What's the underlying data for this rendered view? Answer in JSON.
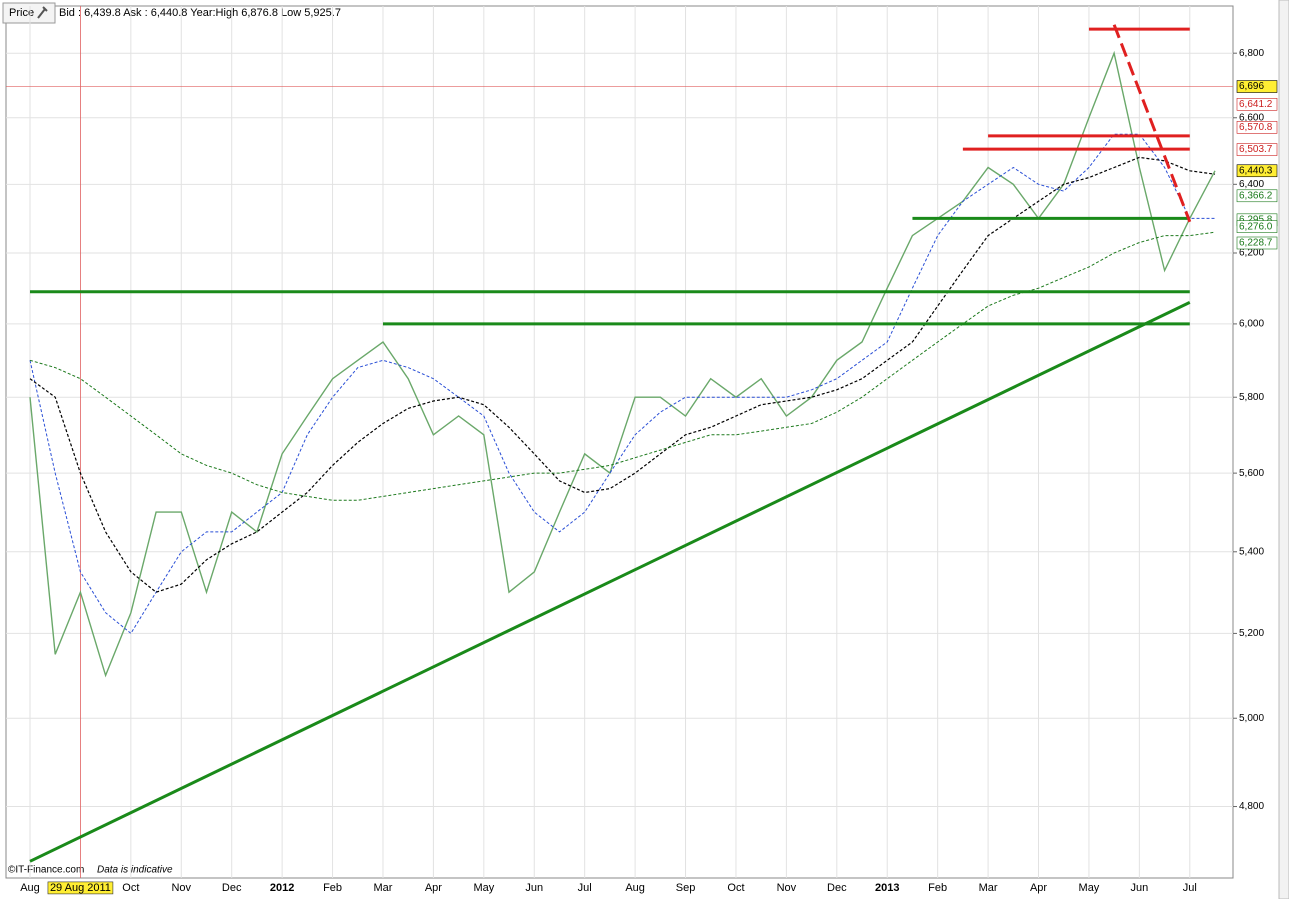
{
  "chart_data": {
    "type": "line",
    "button": "Price",
    "info": "Bid : 6,439.8 Ask : 6,440.8 Year:High 6,876.8 Low 5,925.7",
    "credit": "©IT-Finance.com",
    "note": "Data is indicative",
    "crosshair": {
      "label": "29 Aug 2011",
      "index": 2,
      "value": 6696,
      "color": "#e06060"
    },
    "categories": [
      "Aug",
      null,
      null,
      null,
      "Oct",
      null,
      "Nov",
      null,
      "Dec",
      null,
      "2012",
      null,
      "Feb",
      null,
      "Mar",
      null,
      "Apr",
      null,
      "May",
      null,
      "Jun",
      null,
      "Jul",
      null,
      "Aug",
      null,
      "Sep",
      null,
      "Oct",
      null,
      "Nov",
      null,
      "Dec",
      null,
      "2013",
      null,
      "Feb",
      null,
      "Mar",
      null,
      "Apr",
      null,
      "May",
      null,
      "Jun",
      null,
      "Jul",
      null
    ],
    "series": [
      {
        "name": "Price",
        "color": "#6aa86a",
        "width": 1.4,
        "dash": "",
        "values": [
          5800,
          5150,
          5300,
          5100,
          5250,
          5500,
          5500,
          5300,
          5500,
          5450,
          5650,
          5750,
          5850,
          5900,
          5950,
          5850,
          5700,
          5750,
          5700,
          5300,
          5350,
          5500,
          5650,
          5600,
          5800,
          5800,
          5750,
          5850,
          5800,
          5850,
          5750,
          5800,
          5900,
          5950,
          6100,
          6250,
          6300,
          6350,
          6450,
          6400,
          6300,
          6400,
          6600,
          6800,
          6450,
          6150,
          6300,
          6440
        ]
      },
      {
        "name": "MA blue",
        "color": "#2a4fd6",
        "width": 1,
        "dash": "3 2",
        "values": [
          5900,
          5600,
          5350,
          5250,
          5200,
          5300,
          5400,
          5450,
          5450,
          5500,
          5550,
          5700,
          5800,
          5880,
          5900,
          5880,
          5850,
          5800,
          5750,
          5600,
          5500,
          5450,
          5500,
          5600,
          5700,
          5760,
          5800,
          5800,
          5800,
          5800,
          5800,
          5820,
          5850,
          5900,
          5950,
          6100,
          6250,
          6350,
          6400,
          6450,
          6400,
          6380,
          6450,
          6550,
          6550,
          6450,
          6300,
          6300
        ]
      },
      {
        "name": "MA black",
        "color": "#000000",
        "width": 1.2,
        "dash": "3 2",
        "values": [
          5850,
          5800,
          5600,
          5450,
          5350,
          5300,
          5320,
          5380,
          5420,
          5450,
          5500,
          5550,
          5620,
          5680,
          5730,
          5770,
          5790,
          5800,
          5780,
          5720,
          5650,
          5580,
          5550,
          5560,
          5600,
          5650,
          5700,
          5720,
          5750,
          5780,
          5790,
          5800,
          5820,
          5850,
          5900,
          5950,
          6050,
          6150,
          6250,
          6300,
          6350,
          6400,
          6420,
          6450,
          6480,
          6470,
          6440,
          6430
        ]
      },
      {
        "name": "MA green",
        "color": "#1e7a1e",
        "width": 1,
        "dash": "3 2",
        "values": [
          5900,
          5880,
          5850,
          5800,
          5750,
          5700,
          5650,
          5620,
          5600,
          5570,
          5550,
          5540,
          5530,
          5530,
          5540,
          5550,
          5560,
          5570,
          5580,
          5590,
          5600,
          5600,
          5610,
          5620,
          5640,
          5660,
          5680,
          5700,
          5700,
          5710,
          5720,
          5730,
          5760,
          5800,
          5850,
          5900,
          5950,
          6000,
          6050,
          6080,
          6100,
          6130,
          6160,
          6200,
          6230,
          6250,
          6250,
          6260
        ]
      }
    ],
    "lines": [
      {
        "from": [
          0,
          6090
        ],
        "to": [
          46,
          6090
        ],
        "color": "#1a8a1a",
        "dash": ""
      },
      {
        "from": [
          14,
          6000
        ],
        "to": [
          46,
          6000
        ],
        "color": "#1a8a1a",
        "dash": ""
      },
      {
        "from": [
          35,
          6300
        ],
        "to": [
          46,
          6300
        ],
        "color": "#1a8a1a",
        "dash": ""
      },
      {
        "from": [
          0,
          4680
        ],
        "to": [
          46,
          6060
        ],
        "color": "#1a8a1a",
        "dash": ""
      },
      {
        "from": [
          42,
          6876
        ],
        "to": [
          46,
          6876
        ],
        "color": "#e02020",
        "dash": ""
      },
      {
        "from": [
          38,
          6545
        ],
        "to": [
          46,
          6545
        ],
        "color": "#e02020",
        "dash": ""
      },
      {
        "from": [
          37,
          6505
        ],
        "to": [
          46,
          6505
        ],
        "color": "#e02020",
        "dash": ""
      },
      {
        "from": [
          43,
          6890
        ],
        "to": [
          46,
          6290
        ],
        "color": "#e02020",
        "dash": "14 6"
      }
    ],
    "price_labels": [
      {
        "value": 6696,
        "label": "6,696",
        "color": "#000000",
        "background": "#ffee33"
      },
      {
        "value": 6641.2,
        "label": "6,641.2",
        "color": "#cc2020",
        "background": "#ffffff"
      },
      {
        "value": 6570.8,
        "label": "6,570.8",
        "color": "#cc2020",
        "background": "#ffffff"
      },
      {
        "value": 6503.7,
        "label": "6,503.7",
        "color": "#cc2020",
        "background": "#ffffff"
      },
      {
        "value": 6440.3,
        "label": "6,440.3",
        "color": "#000000",
        "background": "#ffee33"
      },
      {
        "value": 6366.2,
        "label": "6,366.2",
        "color": "#1a7a1a",
        "background": "#ffffff"
      },
      {
        "value": 6295.8,
        "label": "6,295.8",
        "color": "#1a7a1a",
        "background": "#ffffff"
      },
      {
        "value": 6276.0,
        "label": "6,276.0",
        "color": "#1a7a1a",
        "background": "#ffffff"
      },
      {
        "value": 6228.7,
        "label": "6,228.7",
        "color": "#1a7a1a",
        "background": "#ffffff"
      }
    ],
    "ylim": [
      4644,
      6950
    ],
    "log_scale": true,
    "grid": true,
    "yticks": [
      {
        "value": 4800,
        "label": "4,800"
      },
      {
        "value": 5000,
        "label": "5,000"
      },
      {
        "value": 5200,
        "label": "5,200"
      },
      {
        "value": 5400,
        "label": "5,400"
      },
      {
        "value": 5600,
        "label": "5,600"
      },
      {
        "value": 5800,
        "label": "5,800"
      },
      {
        "value": 6000,
        "label": "6,000"
      },
      {
        "value": 6200,
        "label": "6,200"
      },
      {
        "value": 6400,
        "label": "6,400"
      },
      {
        "value": 6600,
        "label": "6,600"
      },
      {
        "value": 6800,
        "label": "6,800"
      }
    ]
  }
}
